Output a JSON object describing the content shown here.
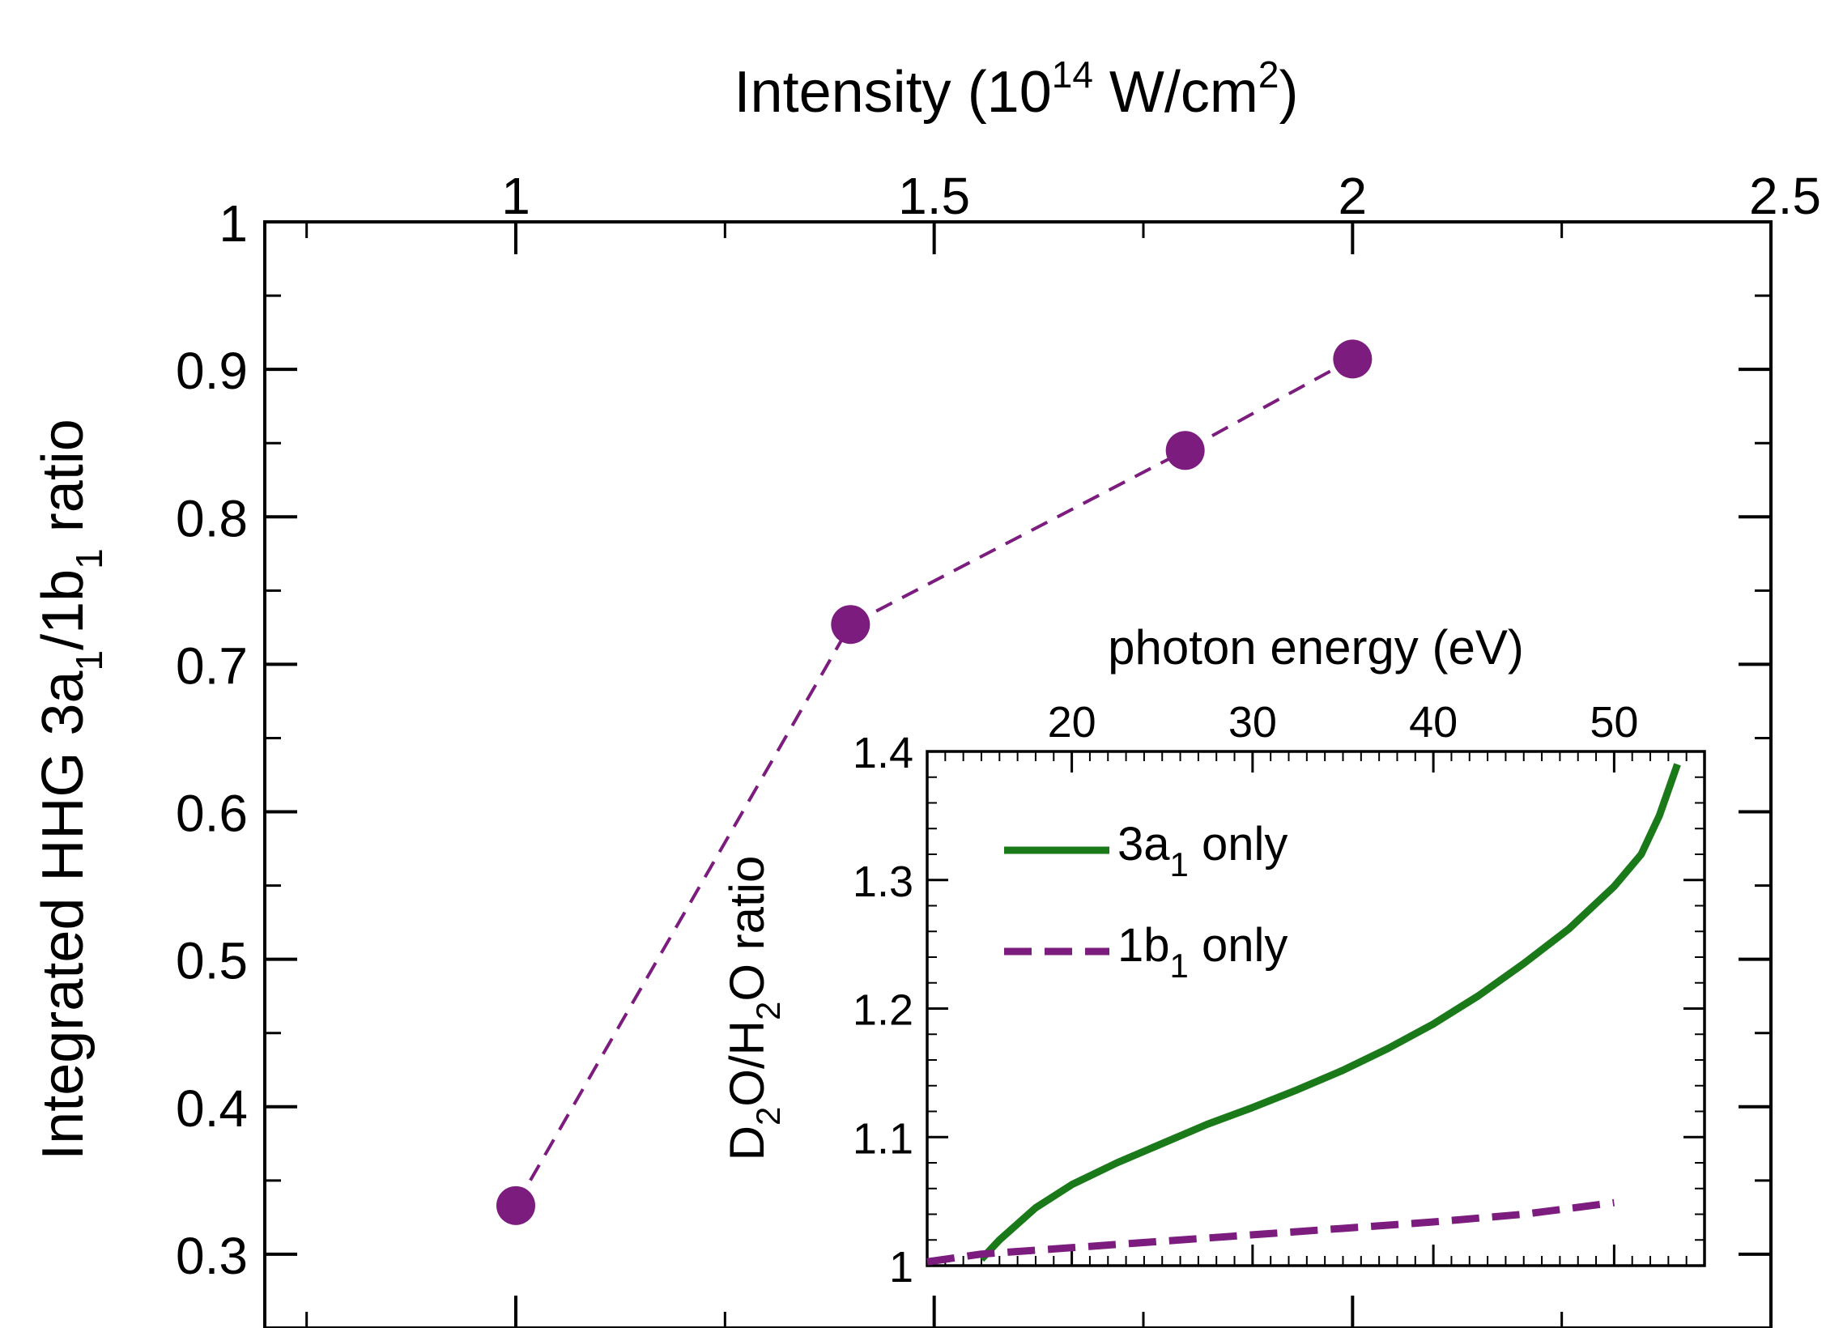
{
  "chart_data": [
    {
      "id": "main",
      "type": "line",
      "title": "",
      "xlabel": {
        "main": "Intensity (10",
        "sup": "14",
        "unit": " W/cm",
        "sup2": "2",
        "close": ")"
      },
      "ylabel": {
        "p1": "Integrated HHG  3a",
        "s1": "1",
        "p2": "/1b",
        "s2": "1",
        "p3": " ratio"
      },
      "x_axis_position": "top",
      "xlim": [
        0.7,
        2.5
      ],
      "ylim": [
        0.25,
        1.0
      ],
      "xticks": [
        1,
        1.5,
        2,
        2.5
      ],
      "xtick_labels": [
        "1",
        "1.5",
        "2",
        "2.5"
      ],
      "yticks": [
        0.3,
        0.4,
        0.5,
        0.6,
        0.7,
        0.8,
        0.9,
        1.0
      ],
      "ytick_labels": [
        "0.3",
        "0.4",
        "0.5",
        "0.6",
        "0.7",
        "0.8",
        "0.9",
        "1"
      ],
      "series": [
        {
          "name": "3a1/1b1 ratio",
          "color": "#7b1c7e",
          "line_style": "dashed",
          "marker": "circle",
          "x": [
            1.0,
            1.4,
            1.8,
            2.0
          ],
          "y": [
            0.333,
            0.727,
            0.845,
            0.907
          ]
        }
      ]
    },
    {
      "id": "inset",
      "type": "line",
      "title": "",
      "xlabel": "photon energy (eV)",
      "ylabel": {
        "p1": "D",
        "s1": "2",
        "p2": "O/H",
        "s2": "2",
        "p3": "O ratio"
      },
      "x_axis_position": "top",
      "xlim": [
        12,
        55
      ],
      "ylim": [
        1.0,
        1.4
      ],
      "xticks": [
        20,
        30,
        40,
        50
      ],
      "xtick_labels": [
        "20",
        "30",
        "40",
        "50"
      ],
      "yticks": [
        1.0,
        1.1,
        1.2,
        1.3,
        1.4
      ],
      "ytick_labels": [
        "1",
        "1.1",
        "1.2",
        "1.3",
        "1.4"
      ],
      "legend_position": "top-left",
      "series": [
        {
          "name": "3a1 only",
          "label_main": "3a",
          "label_sub": "1",
          "label_rest": " only",
          "color": "#1a7a1a",
          "line_style": "solid",
          "x": [
            15,
            16,
            18,
            20,
            22.5,
            25,
            27.5,
            30,
            32.5,
            35,
            37.5,
            40,
            42.5,
            45,
            47.5,
            50,
            51.5,
            52.5,
            53.5
          ],
          "y": [
            1.005,
            1.02,
            1.045,
            1.063,
            1.08,
            1.095,
            1.11,
            1.123,
            1.137,
            1.152,
            1.169,
            1.188,
            1.21,
            1.235,
            1.262,
            1.295,
            1.32,
            1.35,
            1.39
          ]
        },
        {
          "name": "1b1 only",
          "label_main": "1b",
          "label_sub": "1",
          "label_rest": " only",
          "color": "#7b1c7e",
          "line_style": "dashed",
          "x": [
            12,
            15,
            20,
            25,
            30,
            35,
            40,
            45,
            50
          ],
          "y": [
            1.003,
            1.009,
            1.014,
            1.019,
            1.024,
            1.029,
            1.034,
            1.04,
            1.049
          ]
        }
      ]
    }
  ]
}
